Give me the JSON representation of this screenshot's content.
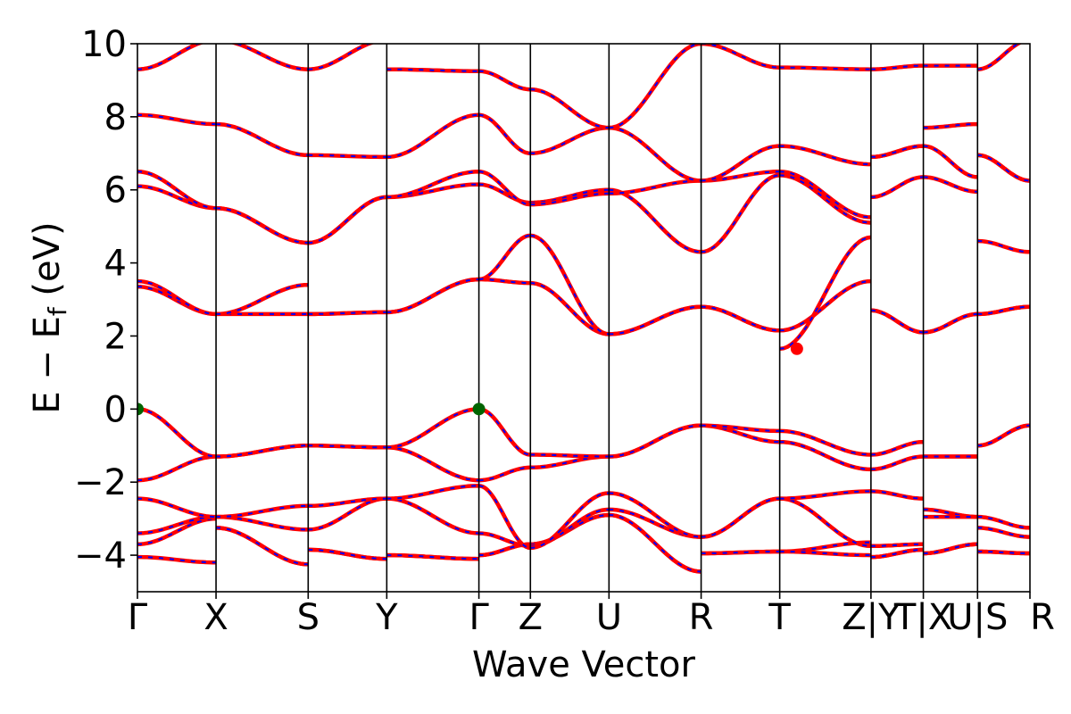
{
  "chart_data": {
    "type": "line",
    "xlabel": "Wave Vector",
    "ylabel": "E − E",
    "ylabel_sub": "f",
    "ylabel_unit": " (eV)",
    "ylim": [
      -5,
      10
    ],
    "xlim": [
      0,
      9.88
    ],
    "yticks": [
      -4,
      -2,
      0,
      2,
      4,
      6,
      8,
      10
    ],
    "ytick_labels": [
      "−4",
      "−2",
      "0",
      "2",
      "4",
      "6",
      "8",
      "10"
    ],
    "grid": false,
    "kpoints": [
      {
        "x": 0.0,
        "label": "Γ"
      },
      {
        "x": 0.87,
        "label": "X"
      },
      {
        "x": 1.89,
        "label": "S"
      },
      {
        "x": 2.76,
        "label": "Y"
      },
      {
        "x": 3.78,
        "label": "Γ"
      },
      {
        "x": 4.35,
        "label": "Z"
      },
      {
        "x": 5.22,
        "label": "U"
      },
      {
        "x": 6.24,
        "label": "R"
      },
      {
        "x": 7.11,
        "label": "T"
      },
      {
        "x": 8.12,
        "label": "Z|Y"
      },
      {
        "x": 8.7,
        "label": "T|X"
      },
      {
        "x": 9.3,
        "label": "U|S"
      },
      {
        "x": 9.88,
        "label": "R"
      }
    ],
    "colors": {
      "series1": "#ff0000",
      "series2": "#0000ff",
      "vbm": "#006400",
      "cbm": "#ff0000",
      "kline": "#000000"
    },
    "markers": [
      {
        "name": "VBM",
        "x": 0.0,
        "y": 0.0
      },
      {
        "name": "VBM",
        "x": 3.78,
        "y": 0.0
      },
      {
        "name": "CBM",
        "x": 7.3,
        "y": 1.65
      }
    ],
    "segments": [
      [
        0.0,
        0.87
      ],
      [
        0.87,
        1.89
      ],
      [
        1.89,
        2.76
      ],
      [
        2.76,
        3.78
      ],
      [
        3.78,
        4.35
      ],
      [
        4.35,
        5.22
      ],
      [
        5.22,
        6.24
      ],
      [
        6.24,
        7.11
      ],
      [
        7.11,
        8.12
      ],
      [
        8.12,
        8.7
      ],
      [
        8.7,
        9.3
      ],
      [
        9.3,
        9.88
      ]
    ],
    "bands": [
      [
        [
          -4.05,
          -4.2
        ],
        [
          -3.25,
          -4.25
        ],
        [
          -3.85,
          -4.1
        ],
        [
          -4.0,
          -4.1
        ],
        [
          -4.0,
          -3.7
        ],
        [
          -3.7,
          -2.9
        ],
        [
          -2.9,
          -4.45
        ],
        [
          -3.95,
          -3.9
        ],
        [
          -3.9,
          -3.65
        ],
        [
          -4.05,
          -3.85
        ],
        [
          -3.95,
          -3.7
        ],
        [
          -3.9,
          -3.95
        ]
      ],
      [
        [
          -3.7,
          -3.0
        ],
        [
          -3.25,
          -4.25
        ],
        [
          -3.85,
          -4.1
        ],
        [
          -4.0,
          -4.1
        ],
        [
          -4.0,
          -3.7
        ],
        [
          -3.7,
          -2.9
        ],
        [
          -2.9,
          -4.45
        ],
        [
          -3.95,
          -3.9
        ],
        [
          -3.9,
          -4.0
        ],
        [
          -4.05,
          -3.85
        ],
        [
          -3.95,
          -3.7
        ],
        [
          -3.9,
          -3.95
        ]
      ],
      [
        [
          -3.4,
          -2.95
        ],
        [
          -2.95,
          -3.3
        ],
        [
          -3.3,
          -2.45
        ],
        [
          -2.45,
          -3.4
        ],
        [
          -3.4,
          -3.75
        ],
        [
          -3.75,
          -2.75
        ],
        [
          -2.75,
          -3.5
        ],
        [
          -3.5,
          -2.45
        ],
        [
          -2.45,
          -3.75
        ],
        [
          -3.75,
          -3.7
        ],
        [
          -2.75,
          -2.95
        ],
        [
          -3.25,
          -3.5
        ]
      ],
      [
        [
          -2.45,
          -2.95
        ],
        [
          -2.95,
          -2.65
        ],
        [
          -2.65,
          -2.45
        ],
        [
          -2.45,
          -2.1
        ],
        [
          -2.1,
          -3.8
        ],
        [
          -3.8,
          -2.3
        ],
        [
          -2.3,
          -3.5
        ],
        [
          -3.5,
          -2.45
        ],
        [
          -2.45,
          -2.25
        ],
        [
          -2.25,
          -2.45
        ],
        [
          -2.95,
          -2.95
        ],
        [
          -2.95,
          -3.25
        ]
      ],
      [
        [
          -1.95,
          -1.3
        ],
        [
          -1.3,
          -1.0
        ],
        [
          -1.0,
          -1.05
        ],
        [
          -1.05,
          -1.95
        ],
        [
          -1.95,
          -1.6
        ],
        [
          -1.6,
          -1.3
        ],
        [
          -1.3,
          -0.45
        ],
        [
          -0.45,
          -0.9
        ],
        [
          -0.9,
          -1.65
        ],
        [
          -1.65,
          -1.3
        ],
        [
          -1.3,
          -1.3
        ],
        [
          -1.0,
          -0.45
        ]
      ],
      [
        [
          0.0,
          -1.3
        ],
        [
          -1.3,
          -1.0
        ],
        [
          -1.0,
          -1.05
        ],
        [
          -1.05,
          0.0
        ],
        [
          0.0,
          -1.25
        ],
        [
          -1.25,
          -1.3
        ],
        [
          -1.3,
          -0.45
        ],
        [
          -0.45,
          -0.6
        ],
        [
          -0.6,
          -1.25
        ],
        [
          -1.25,
          -0.9
        ],
        [
          -1.3,
          -1.3
        ],
        [
          -1.0,
          -0.45
        ]
      ],
      [
        [
          3.35,
          2.6
        ],
        [
          2.6,
          2.6
        ],
        [
          2.6,
          2.65
        ],
        [
          2.65,
          3.55
        ],
        [
          3.55,
          3.45
        ],
        [
          3.45,
          2.05
        ],
        [
          2.05,
          2.8
        ],
        [
          2.8,
          2.15
        ],
        [
          2.15,
          3.5
        ],
        [
          2.7,
          2.1
        ],
        [
          2.1,
          2.6
        ],
        [
          2.6,
          2.8
        ]
      ],
      [
        [
          3.5,
          2.6
        ],
        [
          2.6,
          3.4
        ],
        [
          2.6,
          2.65
        ],
        [
          2.65,
          3.55
        ],
        [
          3.55,
          4.75
        ],
        [
          4.75,
          2.05
        ],
        [
          2.05,
          2.8
        ],
        [
          2.8,
          2.15
        ],
        [
          1.65,
          4.7
        ],
        [
          2.7,
          2.1
        ],
        [
          2.1,
          2.6
        ],
        [
          2.6,
          2.8
        ]
      ],
      [
        [
          6.1,
          5.5
        ],
        [
          5.5,
          4.55
        ],
        [
          4.55,
          5.8
        ],
        [
          5.8,
          6.15
        ],
        [
          6.15,
          5.65
        ],
        [
          5.65,
          6.0
        ],
        [
          6.0,
          4.3
        ],
        [
          4.3,
          6.4
        ],
        [
          6.4,
          5.1
        ],
        [
          5.8,
          6.35
        ],
        [
          6.35,
          5.95
        ],
        [
          4.6,
          4.3
        ]
      ],
      [
        [
          6.5,
          5.5
        ],
        [
          5.5,
          4.55
        ],
        [
          4.55,
          5.8
        ],
        [
          5.8,
          6.5
        ],
        [
          6.5,
          5.6
        ],
        [
          5.6,
          5.9
        ],
        [
          5.9,
          6.25
        ],
        [
          6.25,
          6.5
        ],
        [
          6.5,
          5.25
        ],
        [
          6.9,
          7.2
        ],
        [
          7.2,
          6.35
        ],
        [
          6.95,
          6.25
        ]
      ],
      [
        [
          8.05,
          7.8
        ],
        [
          7.8,
          6.95
        ],
        [
          6.95,
          6.9
        ],
        [
          6.9,
          8.05
        ],
        [
          8.05,
          7.0
        ],
        [
          7.0,
          7.7
        ],
        [
          7.7,
          6.25
        ],
        [
          6.25,
          7.2
        ],
        [
          7.2,
          6.7
        ],
        [
          6.9,
          7.2
        ],
        [
          7.7,
          7.8
        ],
        [
          6.95,
          6.25
        ]
      ],
      [
        [
          9.3,
          10.1
        ],
        [
          10.1,
          9.3
        ],
        [
          9.3,
          10.1
        ],
        [
          9.3,
          9.25
        ],
        [
          9.25,
          8.75
        ],
        [
          8.75,
          7.7
        ],
        [
          7.7,
          10.0
        ],
        [
          10.0,
          9.35
        ],
        [
          9.35,
          9.3
        ],
        [
          9.3,
          9.4
        ],
        [
          9.4,
          9.4
        ],
        [
          9.3,
          10.1
        ]
      ]
    ]
  }
}
